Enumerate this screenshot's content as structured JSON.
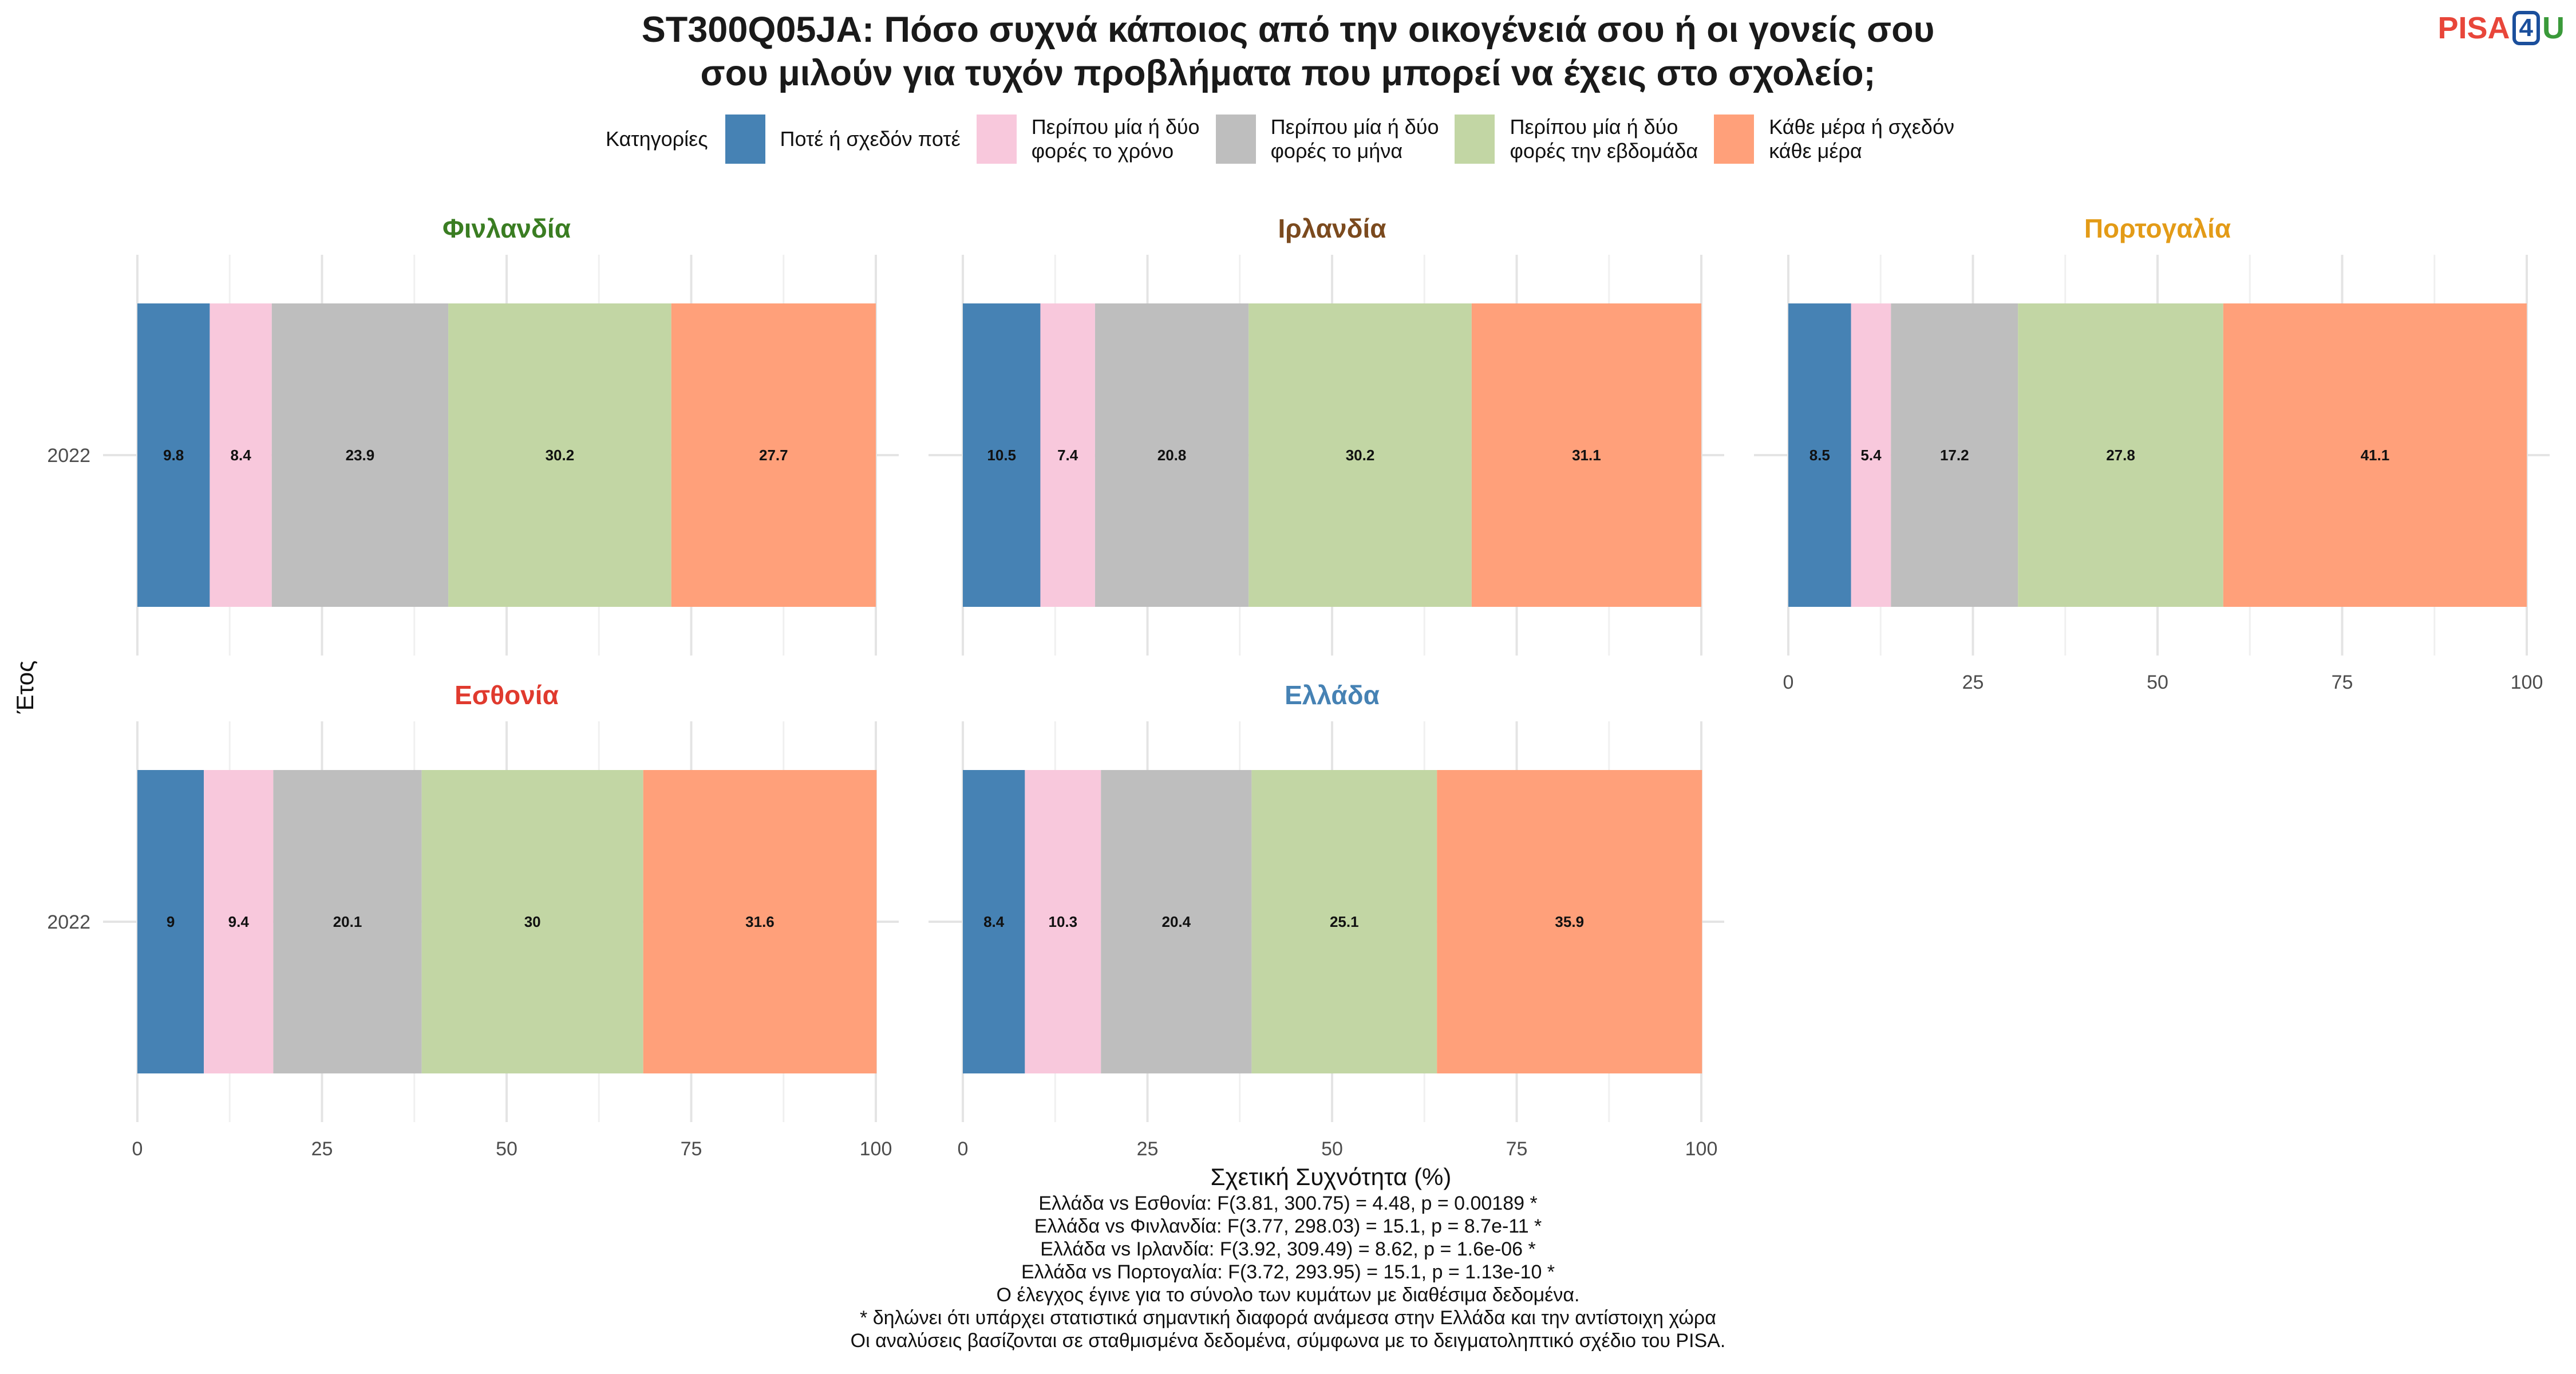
{
  "title_line1": "ST300Q05JA: Πόσο συχνά κάποιος από την οικογένειά σου ή οι γονείς σου",
  "title_line2": "σου μιλούν για τυχόν προβλήματα που μπορεί να έχεις στο σχολείο;",
  "logo": {
    "part1": "PISA",
    "part2": "4",
    "part3": "U"
  },
  "legend": {
    "title": "Κατηγορίες",
    "items": [
      {
        "label": "Ποτέ ή σχεδόν ποτέ",
        "color": "#4682B4"
      },
      {
        "label": "Περίπου μία ή δύο\nφορές το χρόνο",
        "color": "#F8C8DC"
      },
      {
        "label": "Περίπου μία ή δύο\nφορές το μήνα",
        "color": "#BEBEBE"
      },
      {
        "label": "Περίπου μία ή δύο\nφορές την εβδομάδα",
        "color": "#C2D6A4"
      },
      {
        "label": "Κάθε μέρα ή σχεδόν\nκάθε μέρα",
        "color": "#FFA07A"
      }
    ]
  },
  "chart_data": {
    "type": "bar",
    "orientation": "horizontal-stacked",
    "xlabel": "Σχετική Συχνότητα (%)",
    "ylabel": "Έτος",
    "xlim": [
      0,
      100
    ],
    "xticks": [
      0,
      25,
      50,
      75,
      100
    ],
    "categories": [
      "2022"
    ],
    "series_names": [
      "Ποτέ ή σχεδόν ποτέ",
      "Περίπου μία ή δύο φορές το χρόνο",
      "Περίπου μία ή δύο φορές το μήνα",
      "Περίπου μία ή δύο φορές την εβδομάδα",
      "Κάθε μέρα ή σχεδόν κάθε μέρα"
    ],
    "colors": [
      "#4682B4",
      "#F8C8DC",
      "#BEBEBE",
      "#C2D6A4",
      "#FFA07A"
    ],
    "panels": [
      {
        "country": "Φινλανδία",
        "title_color": "#3A7D22",
        "year": "2022",
        "values": [
          9.8,
          8.4,
          23.9,
          30.2,
          27.7
        ],
        "labels": [
          "9.8",
          "8.4",
          "23.9",
          "30.2",
          "27.7"
        ]
      },
      {
        "country": "Ιρλανδία",
        "title_color": "#7B4A1E",
        "year": "2022",
        "values": [
          10.5,
          7.4,
          20.8,
          30.2,
          31.1
        ],
        "labels": [
          "10.5",
          "7.4",
          "20.8",
          "30.2",
          "31.1"
        ]
      },
      {
        "country": "Πορτογαλία",
        "title_color": "#E39B17",
        "year": "2022",
        "values": [
          8.5,
          5.4,
          17.2,
          27.8,
          41.1
        ],
        "labels": [
          "8.5",
          "5.4",
          "17.2",
          "27.8",
          "41.1"
        ]
      },
      {
        "country": "Εσθονία",
        "title_color": "#E03A2E",
        "year": "2022",
        "values": [
          9,
          9.4,
          20.1,
          30,
          31.6
        ],
        "labels": [
          "9",
          "9.4",
          "20.1",
          "30",
          "31.6"
        ]
      },
      {
        "country": "Ελλάδα",
        "title_color": "#4682B4",
        "year": "2022",
        "values": [
          8.4,
          10.3,
          20.4,
          25.1,
          35.9
        ],
        "labels": [
          "8.4",
          "10.3",
          "20.4",
          "25.1",
          "35.9"
        ]
      }
    ],
    "grid": true,
    "legend_position": "top"
  },
  "caption": [
    "Ελλάδα vs Εσθονία: F(3.81, 300.75) = 4.48, p = 0.00189 *",
    "Ελλάδα vs Φινλανδία: F(3.77, 298.03) = 15.1, p = 8.7e-11 *",
    "Ελλάδα vs Ιρλανδία: F(3.92, 309.49) = 8.62, p = 1.6e-06 *",
    "Ελλάδα vs Πορτογαλία: F(3.72, 293.95) = 15.1, p = 1.13e-10 *",
    "Ο έλεγχος έγινε για το σύνολο των κυμάτων με διαθέσιμα δεδομένα.",
    "* δηλώνει ότι υπάρχει στατιστικά σημαντική διαφορά ανάμεσα στην Ελλάδα και την αντίστοιχη χώρα",
    "Οι αναλύσεις βασίζονται σε σταθμισμένα δεδομένα, σύμφωνα με το δειγματοληπτικό σχέδιο του PISA."
  ]
}
